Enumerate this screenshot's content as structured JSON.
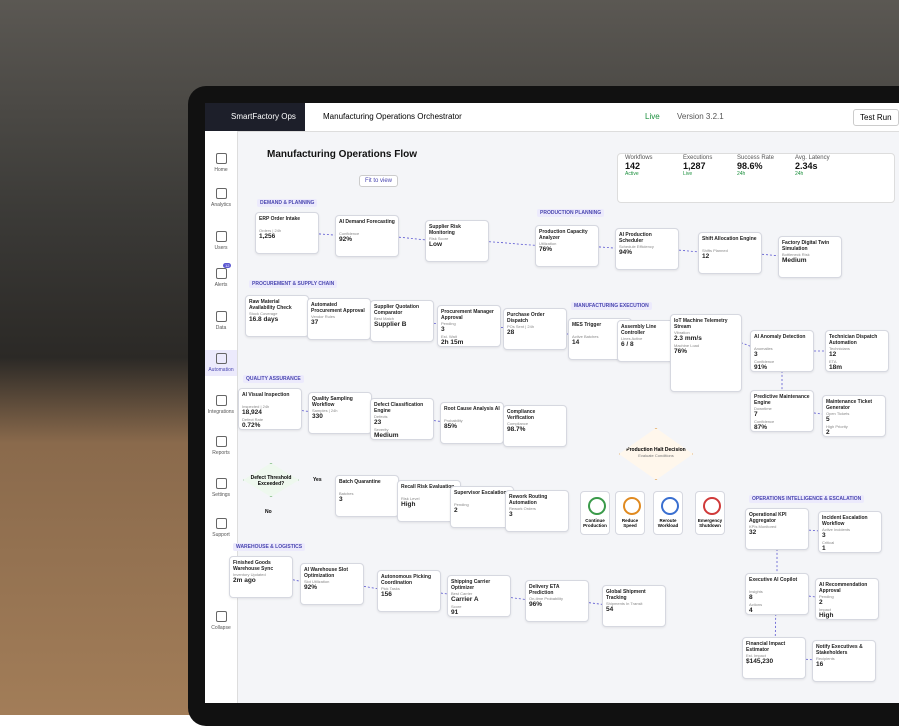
{
  "app": {
    "name": "SmartFactory Ops",
    "tab": "Manufacturing Operations Orchestrator",
    "status": "Live",
    "version": "Version 3.2.1",
    "test_run": "Test Run",
    "alerts_badge": "12"
  },
  "sidebar": [
    "Home",
    "Analytics",
    "Users",
    "Alerts",
    "Data",
    "Automation",
    "Integrations",
    "Reports",
    "Settings",
    "Support",
    "Collapse"
  ],
  "canvas": {
    "title": "Manufacturing Operations Flow",
    "fit": "Fit to view"
  },
  "stats": [
    {
      "label": "Workflows",
      "value": "142",
      "sub": "Active"
    },
    {
      "label": "Executions",
      "value": "1,287",
      "sub": "Live"
    },
    {
      "label": "Success Rate",
      "value": "98.6%",
      "sub": "24h"
    },
    {
      "label": "Avg. Latency",
      "value": "2.34s",
      "sub": "24h"
    }
  ],
  "sections": [
    "DEMAND & PLANNING",
    "PRODUCTION PLANNING",
    "PROCUREMENT & SUPPLY CHAIN",
    "MANUFACTURING EXECUTION",
    "QUALITY ASSURANCE",
    "WAREHOUSE & LOGISTICS",
    "OPERATIONS INTELLIGENCE & ESCALATION"
  ],
  "nodes": [
    {
      "title": "ERP Order Intake",
      "fields": [
        {
          "label": "Orders | 24h",
          "value": "1,256"
        }
      ]
    },
    {
      "title": "AI Demand Forecasting",
      "fields": [
        {
          "label": "Confidence",
          "value": "92%"
        }
      ]
    },
    {
      "title": "Supplier Risk Monitoring",
      "fields": [
        {
          "label": "Risk Score",
          "value": "Low"
        }
      ]
    },
    {
      "title": "Production Capacity Analyzer",
      "fields": [
        {
          "label": "Utilization",
          "value": "76%"
        }
      ]
    },
    {
      "title": "AI Production Scheduler",
      "fields": [
        {
          "label": "Schedule Efficiency",
          "value": "94%"
        }
      ]
    },
    {
      "title": "Shift Allocation Engine",
      "fields": [
        {
          "label": "Shifts Planned",
          "value": "12"
        }
      ]
    },
    {
      "title": "Factory Digital Twin Simulation",
      "fields": [
        {
          "label": "Bottleneck Risk",
          "value": "Medium"
        }
      ]
    },
    {
      "title": "Raw Material Availability Check",
      "fields": [
        {
          "label": "Stock Coverage",
          "value": "16.8 days"
        }
      ]
    },
    {
      "title": "Automated Procurement Approval",
      "fields": [
        {
          "label": "Vendor Rules",
          "value": "37"
        }
      ]
    },
    {
      "title": "Supplier Quotation Comparator",
      "fields": [
        {
          "label": "Best Match",
          "value": "Supplier B"
        }
      ]
    },
    {
      "title": "Procurement Manager Approval",
      "fields": [
        {
          "label": "Pending",
          "value": "3"
        },
        {
          "label": "Est. Wait",
          "value": "2h 15m"
        }
      ]
    },
    {
      "title": "Purchase Order Dispatch",
      "fields": [
        {
          "label": "POs Sent | 24h",
          "value": "28"
        }
      ]
    },
    {
      "title": "MES Trigger",
      "fields": [
        {
          "label": "Active Batches",
          "value": "14"
        }
      ]
    },
    {
      "title": "Assembly Line Controller",
      "fields": [
        {
          "label": "Lines Active",
          "value": "6 / 8"
        }
      ]
    },
    {
      "title": "IoT Machine Telemetry Stream",
      "fields": [
        {
          "label": "Vibration",
          "value": "2.3 mm/s"
        },
        {
          "label": "Machine Load",
          "value": "76%"
        }
      ]
    },
    {
      "title": "AI Anomaly Detection",
      "fields": [
        {
          "label": "Anomalies",
          "value": "3"
        },
        {
          "label": "Confidence",
          "value": "91%"
        }
      ]
    },
    {
      "title": "Technician Dispatch Automation",
      "fields": [
        {
          "label": "Technicians",
          "value": "12"
        },
        {
          "label": "ETA",
          "value": "18m"
        }
      ]
    },
    {
      "title": "Predictive Maintenance Engine",
      "fields": [
        {
          "label": "Downtime",
          "value": "7"
        },
        {
          "label": "Confidence",
          "value": "87%"
        }
      ]
    },
    {
      "title": "Maintenance Ticket Generator",
      "fields": [
        {
          "label": "Open Tickets",
          "value": "5"
        },
        {
          "label": "High Priority",
          "value": "2"
        }
      ]
    },
    {
      "title": "AI Visual Inspection",
      "fields": [
        {
          "label": "Inspected | 24h",
          "value": "18,924"
        },
        {
          "label": "Defect Rate",
          "value": "0.72%"
        }
      ]
    },
    {
      "title": "Quality Sampling Workflow",
      "fields": [
        {
          "label": "Samples | 24h",
          "value": "330"
        }
      ]
    },
    {
      "title": "Defect Classification Engine",
      "fields": [
        {
          "label": "Defects",
          "value": "23"
        },
        {
          "label": "Severity",
          "value": "Medium"
        }
      ]
    },
    {
      "title": "Root Cause Analysis AI",
      "fields": [
        {
          "label": "Probability",
          "value": "85%"
        }
      ]
    },
    {
      "title": "Compliance Verification",
      "fields": [
        {
          "label": "Compliance",
          "value": "98.7%"
        }
      ]
    },
    {
      "title": "Batch Quarantine",
      "fields": [
        {
          "label": "Batches",
          "value": "3"
        }
      ]
    },
    {
      "title": "Recall Risk Evaluation",
      "fields": [
        {
          "label": "Risk Level",
          "value": "High"
        }
      ]
    },
    {
      "title": "Supervisor Escalation",
      "fields": [
        {
          "label": "Pending",
          "value": "2"
        }
      ]
    },
    {
      "title": "Rework Routing Automation",
      "fields": [
        {
          "label": "Rework Orders",
          "value": "3"
        }
      ]
    },
    {
      "title": "Finished Goods Warehouse Sync",
      "fields": [
        {
          "label": "Inventory Updated",
          "value": "2m ago"
        }
      ]
    },
    {
      "title": "AI Warehouse Slot Optimization",
      "fields": [
        {
          "label": "Slot Utilization",
          "value": "92%"
        }
      ]
    },
    {
      "title": "Autonomous Picking Coordination",
      "fields": [
        {
          "label": "Pick Tasks",
          "value": "156"
        }
      ]
    },
    {
      "title": "Shipping Carrier Optimizer",
      "fields": [
        {
          "label": "Best Carrier",
          "value": "Carrier A"
        },
        {
          "label": "Score",
          "value": "91"
        }
      ]
    },
    {
      "title": "Delivery ETA Prediction",
      "fields": [
        {
          "label": "On-time Probability",
          "value": "96%"
        }
      ]
    },
    {
      "title": "Global Shipment Tracking",
      "fields": [
        {
          "label": "Shipments In Transit",
          "value": "54"
        }
      ]
    },
    {
      "title": "Operational KPI Aggregator",
      "fields": [
        {
          "label": "KPIs Monitored",
          "value": "32"
        }
      ]
    },
    {
      "title": "Incident Escalation Workflow",
      "fields": [
        {
          "label": "Active Incidents",
          "value": "3"
        },
        {
          "label": "Critical",
          "value": "1"
        }
      ]
    },
    {
      "title": "Executive AI Copilot",
      "fields": [
        {
          "label": "Insights",
          "value": "8"
        },
        {
          "label": "Actions",
          "value": "4"
        }
      ]
    },
    {
      "title": "AI Recommendation Approval",
      "fields": [
        {
          "label": "Pending",
          "value": "2"
        },
        {
          "label": "Impact",
          "value": "High"
        }
      ]
    },
    {
      "title": "Financial Impact Estimator",
      "fields": [
        {
          "label": "Est. Impact",
          "value": "$145,230"
        }
      ]
    },
    {
      "title": "Notify Executives & Stakeholders",
      "fields": [
        {
          "label": "Recipients",
          "value": "16"
        }
      ]
    }
  ],
  "decisions": [
    {
      "title": "Defect Threshold Exceeded?",
      "yes": "Yes",
      "no": "No"
    },
    {
      "title": "Production Halt Decision",
      "sub": "Evaluate Conditions"
    }
  ],
  "actions": [
    "Continue Production",
    "Reduce Speed",
    "Reroute Workload",
    "Emergency Shutdown"
  ]
}
